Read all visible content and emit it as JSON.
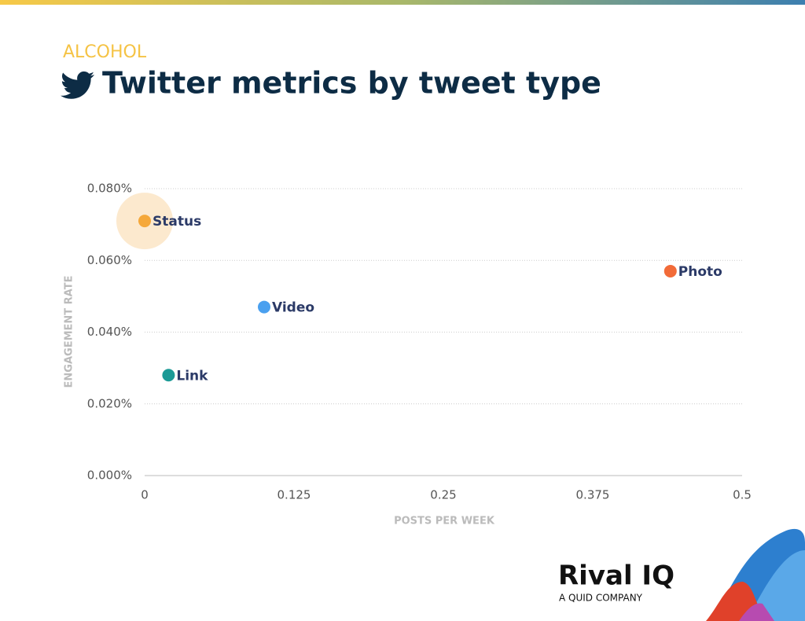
{
  "category": "ALCOHOL",
  "logo": {
    "name": "Rival IQ",
    "tagline": "A QUID COMPANY"
  },
  "chart_data": {
    "type": "scatter",
    "title": "Twitter metrics by tweet type",
    "x_label": "POSTS PER WEEK",
    "y_label": "ENGAGEMENT RATE",
    "xlim": [
      0,
      0.5
    ],
    "xticks": [
      0,
      0.125,
      0.25,
      0.375,
      0.5
    ],
    "ylim": [
      0,
      0.08
    ],
    "yticks": [
      {
        "value": 0,
        "label": "0.000%"
      },
      {
        "value": 0.02,
        "label": "0.020%"
      },
      {
        "value": 0.04,
        "label": "0.040%"
      },
      {
        "value": 0.06,
        "label": "0.060%"
      },
      {
        "value": 0.08,
        "label": "0.080%"
      }
    ],
    "grid": true,
    "series": [
      {
        "name": "Status",
        "color": "#f5a83a",
        "x": [
          0
        ],
        "values": [
          0.071
        ],
        "highlight": true
      },
      {
        "name": "Photo",
        "color": "#f26b38",
        "x": [
          0.44
        ],
        "values": [
          0.057
        ]
      },
      {
        "name": "Video",
        "color": "#4aa0ef",
        "x": [
          0.1
        ],
        "values": [
          0.047
        ]
      },
      {
        "name": "Link",
        "color": "#1b9a96",
        "x": [
          0.02
        ],
        "values": [
          0.028
        ]
      }
    ]
  }
}
